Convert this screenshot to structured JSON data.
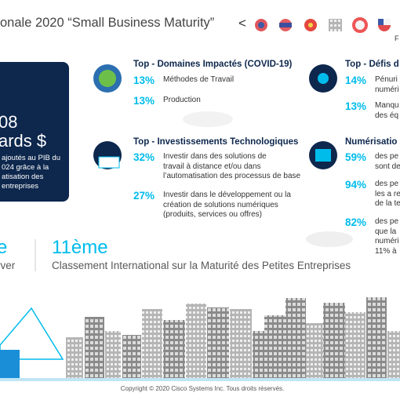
{
  "header": {
    "title": "onale 2020 “Small Business Maturity”",
    "nav_prev": "<",
    "corner": "F"
  },
  "card": {
    "icon": "$",
    "amount": "08",
    "unit": "ards $",
    "lines": [
      "ajoutés au PIB du",
      "024 grâce à la",
      "atisation des",
      "entreprises"
    ]
  },
  "sections": [
    {
      "title": "Top - Domaines Impactés (COVID-19)",
      "items": [
        {
          "pct": "13%",
          "lines": [
            "Méthodes de Travail"
          ]
        },
        {
          "pct": "13%",
          "lines": [
            "Production"
          ]
        }
      ]
    },
    {
      "title": "Top - Défis d",
      "items": [
        {
          "pct": "14%",
          "lines": [
            "Pénuri",
            "numéri"
          ]
        },
        {
          "pct": "13%",
          "lines": [
            "Manqu",
            "des éq"
          ]
        }
      ]
    },
    {
      "title": "Top - Investissements Technologiques",
      "items": [
        {
          "pct": "32%",
          "lines": [
            "Investir dans des solutions de",
            "travail à distance et/ou dans",
            "l’automatisation des processus de base"
          ]
        },
        {
          "pct": "27%",
          "lines": [
            "Investir dans le développement ou la",
            "création de solutions numériques",
            "(produits, services ou offres)"
          ]
        }
      ]
    },
    {
      "title": "Numérisatio",
      "items": [
        {
          "pct": "59%",
          "lines": [
            "des pe",
            "sont de"
          ]
        },
        {
          "pct": "94%",
          "lines": [
            "des pe",
            "les a re",
            "de la te"
          ]
        },
        {
          "pct": "82%",
          "lines": [
            "des pe",
            "que la",
            "numéri",
            "11% à"
          ]
        }
      ]
    }
  ],
  "stats": [
    {
      "value": "e",
      "label": "rver"
    },
    {
      "value": "11ème",
      "label": "Classement International sur la Maturité des Petites Entreprises"
    }
  ],
  "footer": "Copyright © 2020 Cisco Systems Inc. Tous droits réservés."
}
